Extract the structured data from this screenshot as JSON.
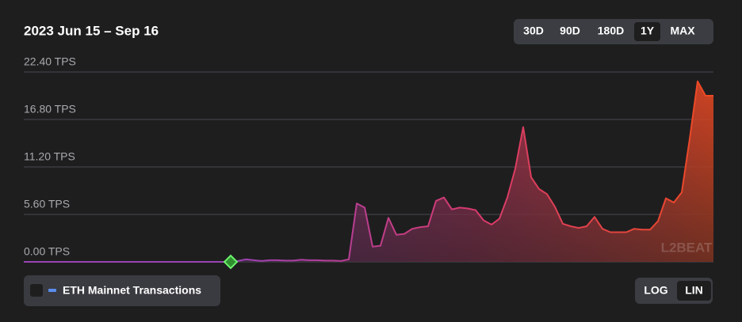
{
  "chart_data": {
    "type": "area",
    "title": "2023 Jun 15 – Sep 16",
    "series": [
      {
        "name": "ETH Mainnet Transactions",
        "legend_color": "#5b8def",
        "values": [
          0,
          0,
          0,
          0,
          0,
          0,
          0,
          0,
          0,
          0,
          0,
          0,
          0,
          0,
          0,
          0,
          0,
          0,
          0,
          0,
          0,
          0,
          0,
          0,
          0,
          0,
          0,
          0.1,
          0.3,
          0.2,
          0.1,
          0.2,
          0.2,
          0.15,
          0.15,
          0.25,
          0.2,
          0.2,
          0.15,
          0.15,
          0.1,
          0.3,
          6.9,
          6.4,
          1.8,
          1.9,
          5.2,
          3.2,
          3.3,
          3.9,
          4.1,
          4.2,
          7.2,
          7.6,
          6.2,
          6.4,
          6.3,
          6.1,
          4.9,
          4.4,
          5.1,
          7.6,
          11.0,
          15.9,
          10.0,
          8.6,
          8.0,
          6.5,
          4.5,
          4.2,
          4.0,
          4.2,
          5.3,
          3.9,
          3.5,
          3.5,
          3.5,
          3.9,
          3.8,
          3.8,
          4.8,
          7.5,
          7.0,
          8.2,
          14.5,
          21.3,
          19.6,
          19.6
        ]
      }
    ],
    "colors": [
      "#9a42b5",
      "#d63a6e",
      "#ee4a22"
    ],
    "ylim": [
      0,
      22.4
    ],
    "yticks": [
      {
        "value": 0,
        "label": "0.00 TPS"
      },
      {
        "value": 5.6,
        "label": "5.60 TPS"
      },
      {
        "value": 11.2,
        "label": "11.20 TPS"
      },
      {
        "value": 16.8,
        "label": "16.80 TPS"
      },
      {
        "value": 22.4,
        "label": "22.40 TPS"
      }
    ],
    "grid": true,
    "watermark": "L2BEAT"
  },
  "controls": {
    "ranges": [
      "30D",
      "90D",
      "180D",
      "1Y",
      "MAX"
    ],
    "active_range": 3,
    "scales": [
      "LOG",
      "LIN"
    ],
    "active_scale": 1
  }
}
